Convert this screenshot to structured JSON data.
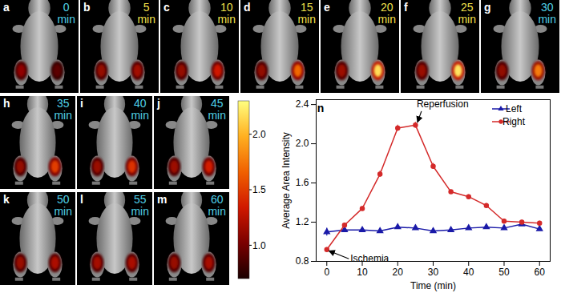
{
  "image_panels": [
    {
      "letter": "a",
      "time": "0",
      "color": "#4fd0e8"
    },
    {
      "letter": "b",
      "time": "5",
      "color": "#f2e14a"
    },
    {
      "letter": "c",
      "time": "10",
      "color": "#f2e14a"
    },
    {
      "letter": "d",
      "time": "15",
      "color": "#f2e14a"
    },
    {
      "letter": "e",
      "time": "20",
      "color": "#f2e14a"
    },
    {
      "letter": "f",
      "time": "25",
      "color": "#f2e14a"
    },
    {
      "letter": "g",
      "time": "30",
      "color": "#4fd0e8"
    },
    {
      "letter": "h",
      "time": "35",
      "color": "#4fd0e8"
    },
    {
      "letter": "i",
      "time": "40",
      "color": "#4fd0e8"
    },
    {
      "letter": "j",
      "time": "45",
      "color": "#4fd0e8"
    },
    {
      "letter": "k",
      "time": "50",
      "color": "#4fd0e8"
    },
    {
      "letter": "l",
      "time": "55",
      "color": "#4fd0e8"
    },
    {
      "letter": "m",
      "time": "60",
      "color": "#4fd0e8"
    }
  ],
  "time_unit": "min",
  "colorbar": {
    "range": [
      0.7,
      2.3
    ],
    "ticks": [
      {
        "value": 1,
        "label": "1.0"
      },
      1.5,
      {
        "value": 2,
        "label": "2.0"
      }
    ],
    "colors": [
      "#1a0000",
      "#7a0000",
      "#d01800",
      "#f06000",
      "#ffb020",
      "#ffff80"
    ]
  },
  "chart_data": {
    "type": "line",
    "title": "n",
    "x_label": "Time (min)",
    "y_label": "Average Area Intensity",
    "x": [
      0,
      5,
      10,
      15,
      20,
      25,
      30,
      35,
      40,
      45,
      50,
      55,
      60
    ],
    "series": [
      {
        "name": "Left",
        "color": "#1a1aa8",
        "marker": "triangle",
        "values": [
          1.1,
          1.12,
          1.12,
          1.11,
          1.15,
          1.14,
          1.11,
          1.12,
          1.14,
          1.15,
          1.14,
          1.18,
          1.13
        ],
        "errors": [
          0.04,
          0.02,
          0.02,
          0.02,
          0.02,
          0.02,
          0.02,
          0.02,
          0.02,
          0.02,
          0.02,
          0.02,
          0.02
        ]
      },
      {
        "name": "Right",
        "color": "#d42a2a",
        "marker": "circle",
        "values": [
          0.92,
          1.17,
          1.34,
          1.69,
          2.16,
          2.19,
          1.77,
          1.51,
          1.46,
          1.37,
          1.21,
          1.2,
          1.19
        ],
        "errors": [
          0.02,
          0.02,
          0.02,
          0.03,
          0.03,
          0.03,
          0.03,
          0.02,
          0.02,
          0.02,
          0.02,
          0.02,
          0.02
        ]
      }
    ],
    "annotations": [
      {
        "text": "Reperfusion",
        "x": 25,
        "y": 2.19
      },
      {
        "text": "Ischemia",
        "x": 0,
        "y": 0.92
      }
    ],
    "xlim": [
      -3,
      63
    ],
    "xticks": [
      0,
      10,
      20,
      30,
      40,
      50,
      60
    ],
    "ylim": [
      0.8,
      2.45
    ],
    "yticks": [
      0.8,
      1.2,
      1.6,
      {
        "value": 2,
        "label": "2.0"
      },
      2.4
    ],
    "legend": "top-right",
    "grid": false
  }
}
